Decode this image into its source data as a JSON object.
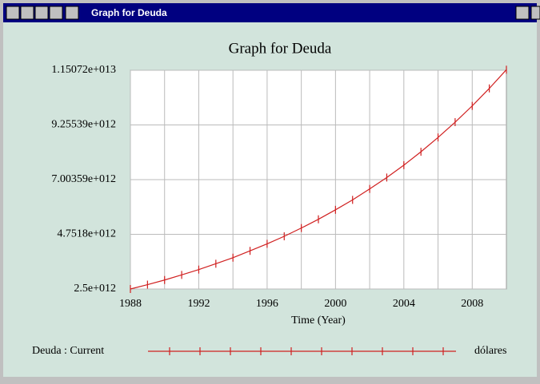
{
  "window": {
    "title": "Graph for Deuda"
  },
  "chart_data": {
    "type": "line",
    "title": "Graph for Deuda",
    "x_label": "Time (Year)",
    "x": [
      1988,
      1989,
      1990,
      1991,
      1992,
      1993,
      1994,
      1995,
      1996,
      1997,
      1998,
      1999,
      2000,
      2001,
      2002,
      2003,
      2004,
      2005,
      2006,
      2007,
      2008,
      2009,
      2010
    ],
    "series": [
      {
        "name": "Deuda : Current",
        "unit": "dólares",
        "color": "#d02020",
        "values": [
          2500000000000.0,
          2680000000000.0,
          2870000000000.0,
          3080000000000.0,
          3300000000000.0,
          3540000000000.0,
          3790000000000.0,
          4070000000000.0,
          4360000000000.0,
          4670000000000.0,
          5010000000000.0,
          5370000000000.0,
          5760000000000.0,
          6170000000000.0,
          6620000000000.0,
          7090000000000.0,
          7600000000000.0,
          8150000000000.0,
          8740000000000.0,
          9370000000000.0,
          10040000000000.0,
          10760000000000.0,
          11530000000000.0
        ]
      }
    ],
    "xlim": [
      1988,
      2010
    ],
    "xticks": [
      1988,
      1992,
      1996,
      2000,
      2004,
      2008
    ],
    "x_minor_ticks": [
      1990,
      1994,
      1998,
      2002,
      2006
    ],
    "ylim": [
      2500000000000.0,
      11507200000000.0
    ],
    "yticks": [
      {
        "value": 2500000000000.0,
        "label": "2.5e+012"
      },
      {
        "value": 4751800000000.0,
        "label": "4.7518e+012"
      },
      {
        "value": 7003590000000.0,
        "label": "7.00359e+012"
      },
      {
        "value": 9255390000000.0,
        "label": "9.25539e+012"
      },
      {
        "value": 11507200000000.0,
        "label": "1.15072e+013"
      }
    ],
    "grid": true
  }
}
